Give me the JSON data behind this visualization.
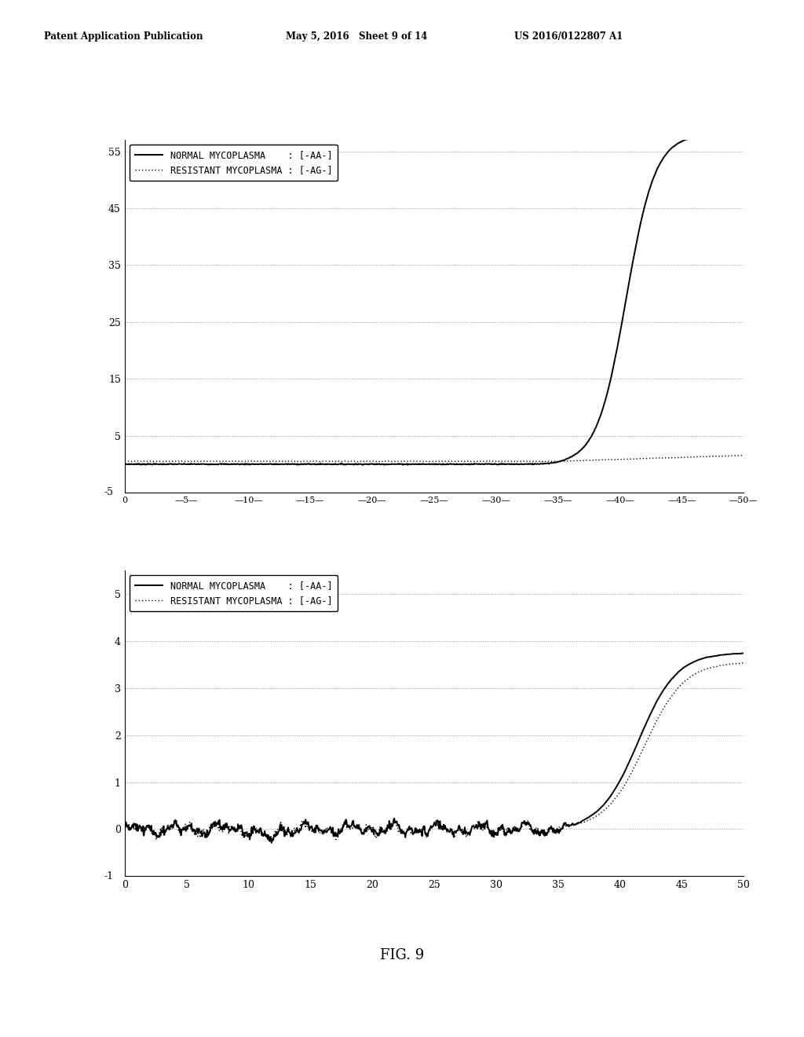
{
  "header_left": "Patent Application Publication",
  "header_center": "May 5, 2016   Sheet 9 of 14",
  "header_right": "US 2016/0122807 A1",
  "fig_label": "FIG. 9",
  "background_color": "#ffffff",
  "text_color": "#000000",
  "plot1": {
    "xlim": [
      0,
      50
    ],
    "ylim": [
      -5,
      57
    ],
    "xticks": [
      0,
      5,
      10,
      15,
      20,
      25,
      30,
      35,
      40,
      45,
      50
    ],
    "yticks": [
      5,
      15,
      25,
      35,
      45,
      55
    ],
    "grid_color": "#999999",
    "legend_label1": "NORMAL MYCOPLASMA    : [-AA-]",
    "legend_label2": "RESISTANT MYCOPLASMA : [-AG-]"
  },
  "plot2": {
    "xlim": [
      0,
      50
    ],
    "ylim": [
      -1,
      5.5
    ],
    "xticks": [
      0,
      5,
      10,
      15,
      20,
      25,
      30,
      35,
      40,
      45,
      50
    ],
    "yticks": [
      0,
      1,
      2,
      3,
      4,
      5
    ],
    "grid_color": "#999999",
    "legend_label1": "NORMAL MYCOPLASMA    : [-AA-]",
    "legend_label2": "RESISTANT MYCOPLASMA : [-AG-]"
  }
}
